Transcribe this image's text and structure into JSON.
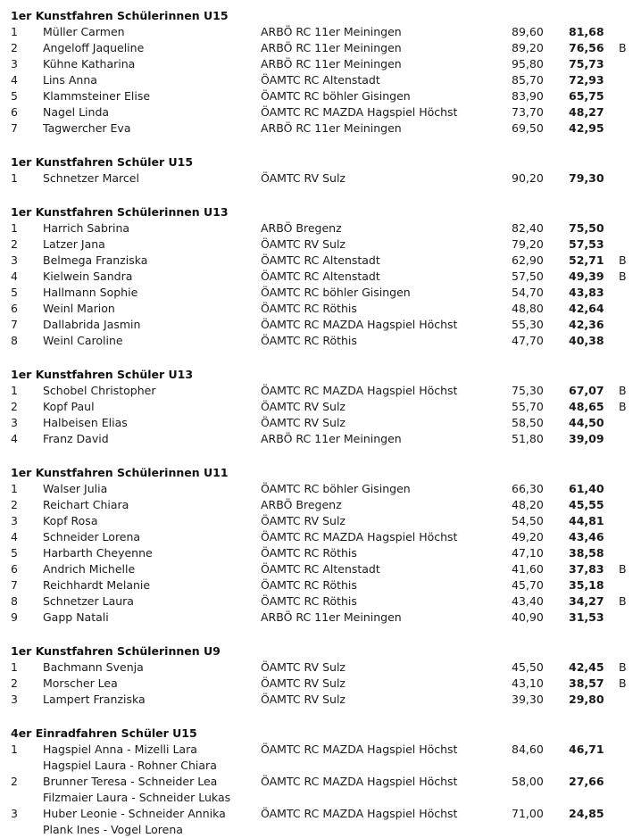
{
  "colors": {
    "text": "#1a1a1a",
    "background": "#ffffff"
  },
  "sections": [
    {
      "title": "1er Kunstfahren Schülerinnen U15",
      "rows": [
        {
          "rank": "1",
          "name": "Müller Carmen",
          "name2": "",
          "club": "ARBÖ RC 11er Meiningen",
          "score1": "89,60",
          "score2": "81,68",
          "flag": ""
        },
        {
          "rank": "2",
          "name": "Angeloff Jaqueline",
          "name2": "",
          "club": "ARBÖ RC 11er Meiningen",
          "score1": "89,20",
          "score2": "76,56",
          "flag": "B"
        },
        {
          "rank": "3",
          "name": "Kühne Katharina",
          "name2": "",
          "club": "ARBÖ RC 11er Meiningen",
          "score1": "95,80",
          "score2": "75,73",
          "flag": ""
        },
        {
          "rank": "4",
          "name": "Lins Anna",
          "name2": "",
          "club": "ÖAMTC RC Altenstadt",
          "score1": "85,70",
          "score2": "72,93",
          "flag": ""
        },
        {
          "rank": "5",
          "name": "Klammsteiner Elise",
          "name2": "",
          "club": "ÖAMTC RC böhler Gisingen",
          "score1": "83,90",
          "score2": "65,75",
          "flag": ""
        },
        {
          "rank": "6",
          "name": "Nagel Linda",
          "name2": "",
          "club": "ÖAMTC RC MAZDA Hagspiel Höchst",
          "score1": "73,70",
          "score2": "48,27",
          "flag": ""
        },
        {
          "rank": "7",
          "name": "Tagwercher Eva",
          "name2": "",
          "club": "ARBÖ RC 11er Meiningen",
          "score1": "69,50",
          "score2": "42,95",
          "flag": ""
        }
      ]
    },
    {
      "title": "1er Kunstfahren Schüler U15",
      "rows": [
        {
          "rank": "1",
          "name": "Schnetzer Marcel",
          "name2": "",
          "club": "ÖAMTC RV Sulz",
          "score1": "90,20",
          "score2": "79,30",
          "flag": ""
        }
      ]
    },
    {
      "title": "1er Kunstfahren Schülerinnen U13",
      "rows": [
        {
          "rank": "1",
          "name": "Harrich Sabrina",
          "name2": "",
          "club": "ARBÖ Bregenz",
          "score1": "82,40",
          "score2": "75,50",
          "flag": ""
        },
        {
          "rank": "2",
          "name": "Latzer Jana",
          "name2": "",
          "club": "ÖAMTC RV Sulz",
          "score1": "79,20",
          "score2": "57,53",
          "flag": ""
        },
        {
          "rank": "3",
          "name": "Belmega Franziska",
          "name2": "",
          "club": "ÖAMTC RC Altenstadt",
          "score1": "62,90",
          "score2": "52,71",
          "flag": "B"
        },
        {
          "rank": "4",
          "name": "Kielwein Sandra",
          "name2": "",
          "club": "ÖAMTC RC Altenstadt",
          "score1": "57,50",
          "score2": "49,39",
          "flag": "B"
        },
        {
          "rank": "5",
          "name": "Hallmann Sophie",
          "name2": "",
          "club": "ÖAMTC RC böhler Gisingen",
          "score1": "54,70",
          "score2": "43,83",
          "flag": ""
        },
        {
          "rank": "6",
          "name": "Weinl Marion",
          "name2": "",
          "club": "ÖAMTC RC Röthis",
          "score1": "48,80",
          "score2": "42,64",
          "flag": ""
        },
        {
          "rank": "7",
          "name": "Dallabrida Jasmin",
          "name2": "",
          "club": "ÖAMTC RC MAZDA Hagspiel Höchst",
          "score1": "55,30",
          "score2": "42,36",
          "flag": ""
        },
        {
          "rank": "8",
          "name": "Weinl Caroline",
          "name2": "",
          "club": "ÖAMTC RC Röthis",
          "score1": "47,70",
          "score2": "40,38",
          "flag": ""
        }
      ]
    },
    {
      "title": "1er Kunstfahren Schüler U13",
      "rows": [
        {
          "rank": "1",
          "name": "Schobel Christopher",
          "name2": "",
          "club": "ÖAMTC RC MAZDA Hagspiel Höchst",
          "score1": "75,30",
          "score2": "67,07",
          "flag": "B"
        },
        {
          "rank": "2",
          "name": "Kopf Paul",
          "name2": "",
          "club": "ÖAMTC RV Sulz",
          "score1": "55,70",
          "score2": "48,65",
          "flag": "B"
        },
        {
          "rank": "3",
          "name": "Halbeisen Elias",
          "name2": "",
          "club": "ÖAMTC RV Sulz",
          "score1": "58,50",
          "score2": "44,50",
          "flag": ""
        },
        {
          "rank": "4",
          "name": "Franz David",
          "name2": "",
          "club": "ARBÖ RC 11er Meiningen",
          "score1": "51,80",
          "score2": "39,09",
          "flag": ""
        }
      ]
    },
    {
      "title": "1er Kunstfahren Schülerinnen U11",
      "rows": [
        {
          "rank": "1",
          "name": "Walser Julia",
          "name2": "",
          "club": "ÖAMTC RC böhler Gisingen",
          "score1": "66,30",
          "score2": "61,40",
          "flag": ""
        },
        {
          "rank": "2",
          "name": "Reichart Chiara",
          "name2": "",
          "club": "ARBÖ Bregenz",
          "score1": "48,20",
          "score2": "45,55",
          "flag": ""
        },
        {
          "rank": "3",
          "name": "Kopf Rosa",
          "name2": "",
          "club": "ÖAMTC RV Sulz",
          "score1": "54,50",
          "score2": "44,81",
          "flag": ""
        },
        {
          "rank": "4",
          "name": "Schneider Lorena",
          "name2": "",
          "club": "ÖAMTC RC MAZDA Hagspiel Höchst",
          "score1": "49,20",
          "score2": "43,46",
          "flag": ""
        },
        {
          "rank": "5",
          "name": "Harbarth Cheyenne",
          "name2": "",
          "club": "ÖAMTC RC Röthis",
          "score1": "47,10",
          "score2": "38,58",
          "flag": ""
        },
        {
          "rank": "6",
          "name": "Andrich Michelle",
          "name2": "",
          "club": "ÖAMTC RC Altenstadt",
          "score1": "41,60",
          "score2": "37,83",
          "flag": "B"
        },
        {
          "rank": "7",
          "name": "Reichhardt Melanie",
          "name2": "",
          "club": "ÖAMTC RC Röthis",
          "score1": "45,70",
          "score2": "35,18",
          "flag": ""
        },
        {
          "rank": "8",
          "name": "Schnetzer Laura",
          "name2": "",
          "club": "ÖAMTC RC Röthis",
          "score1": "43,40",
          "score2": "34,27",
          "flag": "B"
        },
        {
          "rank": "9",
          "name": "Gapp Natali",
          "name2": "",
          "club": "ARBÖ RC 11er Meiningen",
          "score1": "40,90",
          "score2": "31,53",
          "flag": ""
        }
      ]
    },
    {
      "title": "1er Kunstfahren Schülerinnen U9",
      "rows": [
        {
          "rank": "1",
          "name": "Bachmann Svenja",
          "name2": "",
          "club": "ÖAMTC RV Sulz",
          "score1": "45,50",
          "score2": "42,45",
          "flag": "B"
        },
        {
          "rank": "2",
          "name": "Morscher Lea",
          "name2": "",
          "club": "ÖAMTC RV Sulz",
          "score1": "43,10",
          "score2": "38,57",
          "flag": "B"
        },
        {
          "rank": "3",
          "name": "Lampert Franziska",
          "name2": "",
          "club": "ÖAMTC RV Sulz",
          "score1": "39,30",
          "score2": "29,80",
          "flag": ""
        }
      ]
    },
    {
      "title": "4er Einradfahren Schüler U15",
      "rows": [
        {
          "rank": "1",
          "name": "Hagspiel Anna - Mizelli Lara",
          "name2": "Hagspiel Laura - Rohner Chiara",
          "club": "ÖAMTC RC MAZDA Hagspiel Höchst",
          "score1": "84,60",
          "score2": "46,71",
          "flag": ""
        },
        {
          "rank": "2",
          "name": "Brunner Teresa - Schneider Lea",
          "name2": "Filzmaier Laura - Schneider Lukas",
          "club": "ÖAMTC RC MAZDA Hagspiel Höchst",
          "score1": "58,00",
          "score2": "27,66",
          "flag": ""
        },
        {
          "rank": "3",
          "name": "Huber Leonie - Schneider Annika",
          "name2": "Plank Ines - Vogel Lorena",
          "club": "ÖAMTC RC MAZDA Hagspiel Höchst",
          "score1": "71,00",
          "score2": "24,85",
          "flag": ""
        }
      ]
    }
  ]
}
